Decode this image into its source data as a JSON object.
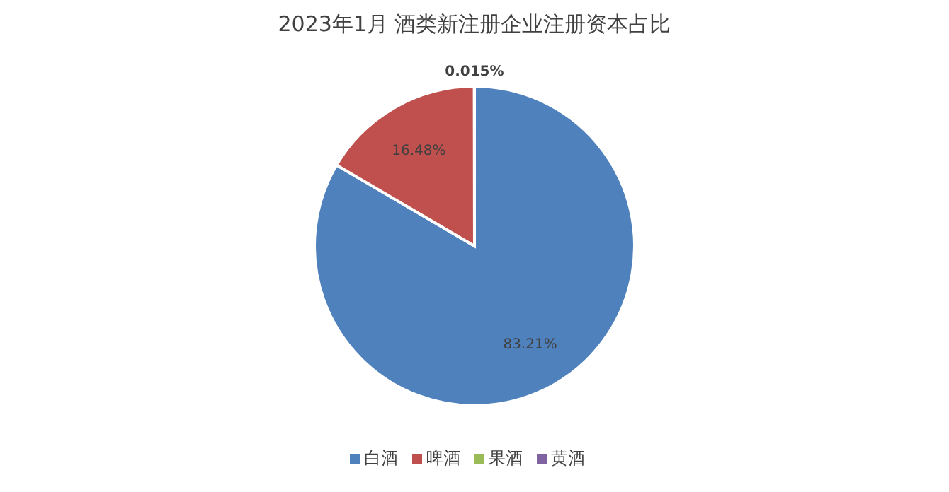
{
  "chart_data": {
    "type": "pie",
    "title": "2023年1月 酒类新注册企业注册资本占比",
    "categories": [
      "白酒",
      "啤酒",
      "果酒",
      "黄酒"
    ],
    "values": [
      83.21,
      16.48,
      0.015,
      null
    ],
    "colors": [
      "#4f81bd",
      "#c0504d",
      "#9bbb59",
      "#8064a2"
    ],
    "value_labels": [
      "83.21%",
      "16.48%",
      "0.015%",
      null
    ],
    "legend": "bottom"
  }
}
